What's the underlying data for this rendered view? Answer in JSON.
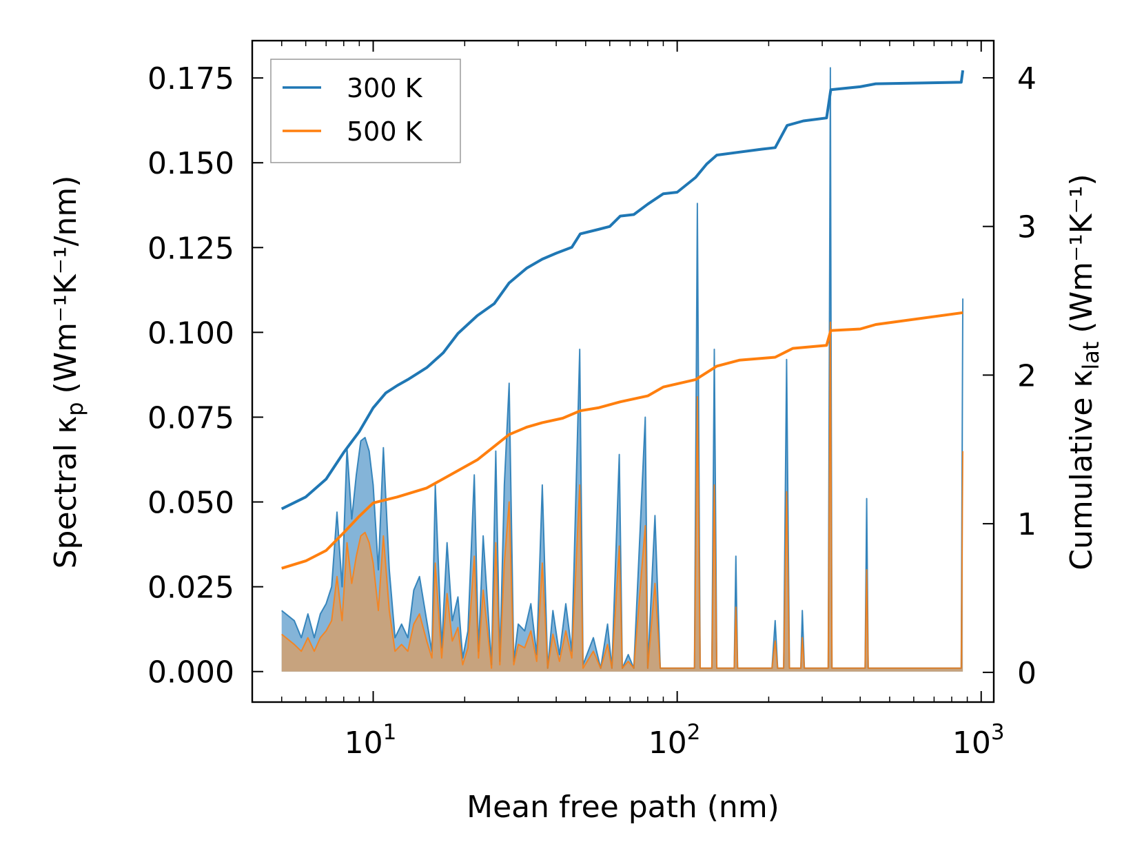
{
  "chart_data": {
    "type": "line",
    "xlabel": "Mean free path (nm)",
    "ylabel_left": {
      "base": "Spectral κ",
      "sub": "p",
      "unit": "(Wm⁻¹K⁻¹/nm)"
    },
    "ylabel_right": {
      "base": "Cumulative κ",
      "sub": "lat",
      "unit": "(Wm⁻¹K⁻¹)"
    },
    "xscale": "log",
    "xlim": [
      4,
      1100
    ],
    "ylim_left": [
      -0.009,
      0.186
    ],
    "ylim_right": [
      -0.2,
      4.25
    ],
    "x_ticks": [
      {
        "value": 10,
        "base": "10",
        "exp": "1"
      },
      {
        "value": 100,
        "base": "10",
        "exp": "2"
      },
      {
        "value": 1000,
        "base": "10",
        "exp": "3"
      }
    ],
    "y_ticks_left": [
      "0.000",
      "0.025",
      "0.050",
      "0.075",
      "0.100",
      "0.125",
      "0.150",
      "0.175"
    ],
    "y_ticks_right": [
      "0",
      "1",
      "2",
      "3",
      "4"
    ],
    "legend": {
      "position": "top-left",
      "entries": [
        "300 K",
        "500 K"
      ]
    },
    "colors": {
      "s300": "#1f77b4",
      "s500": "#ff7f0e",
      "fill300": "#5b9bcb",
      "fill500": "#d2a06e"
    },
    "cumulative": [
      {
        "name": "300 K",
        "color": "#1f77b4",
        "points": [
          [
            5,
            1.1
          ],
          [
            6,
            1.18
          ],
          [
            7,
            1.3
          ],
          [
            8,
            1.48
          ],
          [
            9,
            1.62
          ],
          [
            10,
            1.78
          ],
          [
            11,
            1.88
          ],
          [
            12,
            1.93
          ],
          [
            13,
            1.97
          ],
          [
            15,
            2.05
          ],
          [
            17,
            2.15
          ],
          [
            19,
            2.28
          ],
          [
            22,
            2.4
          ],
          [
            25,
            2.48
          ],
          [
            28,
            2.62
          ],
          [
            32,
            2.72
          ],
          [
            36,
            2.78
          ],
          [
            40,
            2.82
          ],
          [
            45,
            2.86
          ],
          [
            48,
            2.95
          ],
          [
            55,
            2.98
          ],
          [
            60,
            3.0
          ],
          [
            65,
            3.07
          ],
          [
            72,
            3.08
          ],
          [
            80,
            3.15
          ],
          [
            90,
            3.22
          ],
          [
            100,
            3.23
          ],
          [
            115,
            3.33
          ],
          [
            125,
            3.42
          ],
          [
            135,
            3.48
          ],
          [
            160,
            3.5
          ],
          [
            190,
            3.52
          ],
          [
            210,
            3.53
          ],
          [
            230,
            3.68
          ],
          [
            260,
            3.71
          ],
          [
            310,
            3.73
          ],
          [
            320,
            3.92
          ],
          [
            400,
            3.94
          ],
          [
            450,
            3.96
          ],
          [
            860,
            3.97
          ],
          [
            870,
            4.05
          ]
        ]
      },
      {
        "name": "500 K",
        "color": "#ff7f0e",
        "points": [
          [
            5,
            0.7
          ],
          [
            6,
            0.75
          ],
          [
            7,
            0.82
          ],
          [
            8,
            0.94
          ],
          [
            9,
            1.05
          ],
          [
            10,
            1.14
          ],
          [
            12,
            1.18
          ],
          [
            15,
            1.24
          ],
          [
            18,
            1.33
          ],
          [
            22,
            1.43
          ],
          [
            25,
            1.52
          ],
          [
            28,
            1.6
          ],
          [
            32,
            1.65
          ],
          [
            36,
            1.68
          ],
          [
            42,
            1.71
          ],
          [
            48,
            1.76
          ],
          [
            55,
            1.78
          ],
          [
            65,
            1.82
          ],
          [
            80,
            1.86
          ],
          [
            90,
            1.92
          ],
          [
            115,
            1.97
          ],
          [
            135,
            2.06
          ],
          [
            160,
            2.1
          ],
          [
            210,
            2.12
          ],
          [
            240,
            2.18
          ],
          [
            310,
            2.2
          ],
          [
            320,
            2.3
          ],
          [
            400,
            2.31
          ],
          [
            450,
            2.34
          ],
          [
            870,
            2.42
          ]
        ]
      }
    ],
    "spectral": [
      {
        "name": "300 K",
        "color": "#1f77b4",
        "points": [
          [
            5,
            0.018
          ],
          [
            5.5,
            0.015
          ],
          [
            5.8,
            0.01
          ],
          [
            6.1,
            0.017
          ],
          [
            6.4,
            0.01
          ],
          [
            6.7,
            0.017
          ],
          [
            7,
            0.02
          ],
          [
            7.3,
            0.025
          ],
          [
            7.6,
            0.047
          ],
          [
            7.9,
            0.025
          ],
          [
            8.2,
            0.066
          ],
          [
            8.5,
            0.045
          ],
          [
            8.8,
            0.058
          ],
          [
            9.1,
            0.068
          ],
          [
            9.4,
            0.069
          ],
          [
            9.7,
            0.065
          ],
          [
            10,
            0.055
          ],
          [
            10.4,
            0.03
          ],
          [
            10.8,
            0.066
          ],
          [
            11.3,
            0.03
          ],
          [
            11.8,
            0.01
          ],
          [
            12.4,
            0.014
          ],
          [
            13,
            0.01
          ],
          [
            13.6,
            0.024
          ],
          [
            14.2,
            0.028
          ],
          [
            15,
            0.015
          ],
          [
            15.6,
            0.006
          ],
          [
            16,
            0.055
          ],
          [
            16.8,
            0.007
          ],
          [
            17.5,
            0.038
          ],
          [
            18.2,
            0.015
          ],
          [
            19,
            0.022
          ],
          [
            19.7,
            0.004
          ],
          [
            20.5,
            0.012
          ],
          [
            21.5,
            0.058
          ],
          [
            22.2,
            0.006
          ],
          [
            23,
            0.04
          ],
          [
            24.5,
            0.002
          ],
          [
            25.3,
            0.065
          ],
          [
            26.1,
            0.003
          ],
          [
            27,
            0.055
          ],
          [
            28,
            0.085
          ],
          [
            29,
            0.003
          ],
          [
            30,
            0.014
          ],
          [
            31.5,
            0.012
          ],
          [
            33,
            0.02
          ],
          [
            34.5,
            0.005
          ],
          [
            36,
            0.055
          ],
          [
            37.5,
            0.001
          ],
          [
            39,
            0.018
          ],
          [
            41,
            0.005
          ],
          [
            43,
            0.02
          ],
          [
            45,
            0.006
          ],
          [
            47.8,
            0.095
          ],
          [
            49,
            0.002
          ],
          [
            53,
            0.01
          ],
          [
            56,
            0.001
          ],
          [
            59,
            0.014
          ],
          [
            61,
            0.001
          ],
          [
            64.5,
            0.064
          ],
          [
            66,
            0.001
          ],
          [
            69,
            0.005
          ],
          [
            72,
            0.001
          ],
          [
            78.5,
            0.075
          ],
          [
            80,
            0.001
          ],
          [
            84.5,
            0.046
          ],
          [
            88,
            0.001
          ],
          [
            114,
            0.001
          ],
          [
            116.5,
            0.138
          ],
          [
            119,
            0.001
          ],
          [
            130,
            0.001
          ],
          [
            132.5,
            0.095
          ],
          [
            135,
            0.001
          ],
          [
            154,
            0.001
          ],
          [
            156,
            0.034
          ],
          [
            158,
            0.001
          ],
          [
            205,
            0.001
          ],
          [
            210,
            0.015
          ],
          [
            214,
            0.001
          ],
          [
            224,
            0.001
          ],
          [
            229,
            0.092
          ],
          [
            234,
            0.001
          ],
          [
            255,
            0.001
          ],
          [
            258,
            0.018
          ],
          [
            262,
            0.001
          ],
          [
            314,
            0.001
          ],
          [
            319,
            0.178
          ],
          [
            323,
            0.001
          ],
          [
            415,
            0.001
          ],
          [
            420,
            0.051
          ],
          [
            425,
            0.001
          ],
          [
            860,
            0.001
          ],
          [
            870,
            0.11
          ]
        ]
      },
      {
        "name": "500 K",
        "color": "#ff7f0e",
        "points": [
          [
            5,
            0.011
          ],
          [
            5.5,
            0.008
          ],
          [
            5.8,
            0.006
          ],
          [
            6.1,
            0.01
          ],
          [
            6.4,
            0.006
          ],
          [
            6.7,
            0.01
          ],
          [
            7,
            0.012
          ],
          [
            7.3,
            0.015
          ],
          [
            7.6,
            0.028
          ],
          [
            7.9,
            0.015
          ],
          [
            8.2,
            0.038
          ],
          [
            8.5,
            0.026
          ],
          [
            8.8,
            0.034
          ],
          [
            9.1,
            0.04
          ],
          [
            9.4,
            0.041
          ],
          [
            9.7,
            0.038
          ],
          [
            10,
            0.032
          ],
          [
            10.4,
            0.018
          ],
          [
            10.8,
            0.04
          ],
          [
            11.3,
            0.018
          ],
          [
            11.8,
            0.006
          ],
          [
            12.4,
            0.008
          ],
          [
            13,
            0.006
          ],
          [
            13.6,
            0.014
          ],
          [
            14.2,
            0.017
          ],
          [
            15,
            0.009
          ],
          [
            15.6,
            0.004
          ],
          [
            16,
            0.032
          ],
          [
            16.8,
            0.004
          ],
          [
            17.5,
            0.023
          ],
          [
            18.2,
            0.009
          ],
          [
            19,
            0.013
          ],
          [
            19.7,
            0.002
          ],
          [
            20.5,
            0.007
          ],
          [
            21.5,
            0.034
          ],
          [
            22.2,
            0.004
          ],
          [
            23,
            0.024
          ],
          [
            24.5,
            0.001
          ],
          [
            25.3,
            0.038
          ],
          [
            26.1,
            0.002
          ],
          [
            27,
            0.032
          ],
          [
            28,
            0.05
          ],
          [
            29,
            0.002
          ],
          [
            30,
            0.008
          ],
          [
            31.5,
            0.007
          ],
          [
            33,
            0.012
          ],
          [
            34.5,
            0.003
          ],
          [
            36,
            0.032
          ],
          [
            37.5,
            0.001
          ],
          [
            39,
            0.011
          ],
          [
            41,
            0.003
          ],
          [
            43,
            0.012
          ],
          [
            45,
            0.004
          ],
          [
            47.8,
            0.055
          ],
          [
            49,
            0.001
          ],
          [
            53,
            0.006
          ],
          [
            56,
            0.001
          ],
          [
            59,
            0.008
          ],
          [
            61,
            0.001
          ],
          [
            64.5,
            0.037
          ],
          [
            66,
            0.001
          ],
          [
            69,
            0.003
          ],
          [
            72,
            0.001
          ],
          [
            78.5,
            0.043
          ],
          [
            80,
            0.001
          ],
          [
            84.5,
            0.026
          ],
          [
            88,
            0.001
          ],
          [
            114,
            0.001
          ],
          [
            116.5,
            0.081
          ],
          [
            119,
            0.001
          ],
          [
            130,
            0.001
          ],
          [
            132.5,
            0.055
          ],
          [
            135,
            0.001
          ],
          [
            154,
            0.001
          ],
          [
            156,
            0.019
          ],
          [
            158,
            0.001
          ],
          [
            205,
            0.001
          ],
          [
            210,
            0.009
          ],
          [
            214,
            0.001
          ],
          [
            224,
            0.001
          ],
          [
            229,
            0.053
          ],
          [
            234,
            0.001
          ],
          [
            255,
            0.001
          ],
          [
            258,
            0.01
          ],
          [
            262,
            0.001
          ],
          [
            314,
            0.001
          ],
          [
            319,
            0.103
          ],
          [
            323,
            0.001
          ],
          [
            415,
            0.001
          ],
          [
            420,
            0.03
          ],
          [
            425,
            0.001
          ],
          [
            860,
            0.001
          ],
          [
            870,
            0.065
          ]
        ]
      }
    ]
  }
}
